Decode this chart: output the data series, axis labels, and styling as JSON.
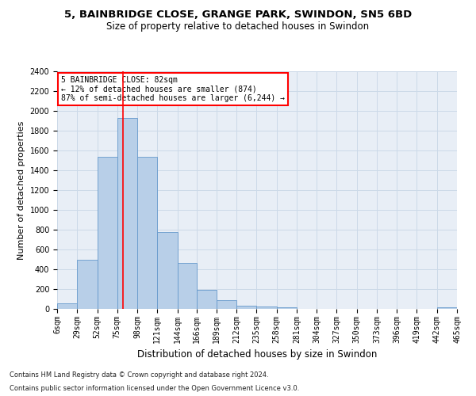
{
  "title1": "5, BAINBRIDGE CLOSE, GRANGE PARK, SWINDON, SN5 6BD",
  "title2": "Size of property relative to detached houses in Swindon",
  "xlabel": "Distribution of detached houses by size in Swindon",
  "ylabel": "Number of detached properties",
  "footnote1": "Contains HM Land Registry data © Crown copyright and database right 2024.",
  "footnote2": "Contains public sector information licensed under the Open Government Licence v3.0.",
  "annotation_line1": "5 BAINBRIDGE CLOSE: 82sqm",
  "annotation_line2": "← 12% of detached houses are smaller (874)",
  "annotation_line3": "87% of semi-detached houses are larger (6,244) →",
  "bar_color": "#b8cfe8",
  "bar_edge_color": "#6699cc",
  "grid_color": "#ccd9e8",
  "bg_color": "#e8eef6",
  "vline_color": "red",
  "vline_x": 82,
  "bins": [
    6,
    29,
    52,
    75,
    98,
    121,
    144,
    166,
    189,
    212,
    235,
    258,
    281,
    304,
    327,
    350,
    373,
    396,
    419,
    442,
    465
  ],
  "heights": [
    60,
    500,
    1540,
    1930,
    1540,
    780,
    465,
    190,
    90,
    35,
    25,
    20,
    0,
    0,
    0,
    0,
    0,
    0,
    0,
    20
  ],
  "ylim": [
    0,
    2400
  ],
  "yticks": [
    0,
    200,
    400,
    600,
    800,
    1000,
    1200,
    1400,
    1600,
    1800,
    2000,
    2200,
    2400
  ],
  "title1_fontsize": 9.5,
  "title2_fontsize": 8.5,
  "xlabel_fontsize": 8.5,
  "ylabel_fontsize": 8,
  "tick_fontsize": 7,
  "annot_fontsize": 7,
  "footnote_fontsize": 6
}
